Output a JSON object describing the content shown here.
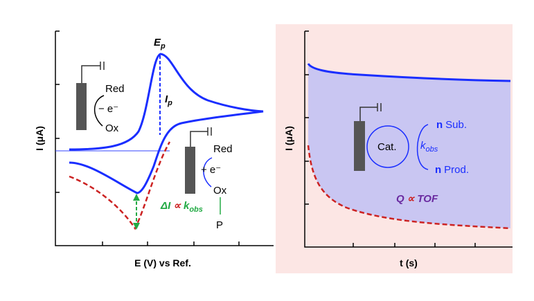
{
  "left": {
    "y_label": "I (μA)",
    "x_label": "E (V) vs Ref.",
    "peak_potential": {
      "main": "E",
      "sub": "p"
    },
    "peak_current": {
      "main": "I",
      "sub": "p"
    },
    "oxidation": {
      "top": "Red",
      "electron": "− e⁻",
      "bottom": "Ox"
    },
    "reduction": {
      "top": "Red",
      "electron": "+ e⁻",
      "bottom": "Ox",
      "product": "P"
    },
    "relation": {
      "delta": "ΔI",
      "prop": "∝",
      "k": "k",
      "sub": "obs"
    }
  },
  "right": {
    "y_label": "I (μA)",
    "x_label": "t (s)",
    "catalyst": "Cat.",
    "rate": {
      "k": "k",
      "sub": "obs"
    },
    "substrate": {
      "n": "n",
      "name": "Sub."
    },
    "product": {
      "n": "n",
      "name": "Prod."
    },
    "relation": {
      "q": "Q",
      "prop": "∝",
      "tof": "TOF"
    }
  }
}
